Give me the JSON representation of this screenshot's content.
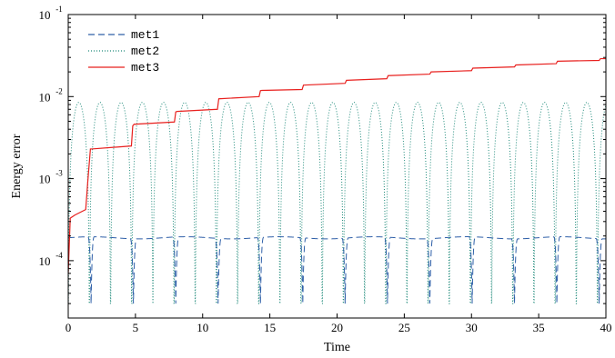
{
  "chart_data": {
    "type": "line",
    "xlabel": "Time",
    "ylabel": "Energy error",
    "xlim": [
      0,
      40
    ],
    "ylim": [
      2e-05,
      0.1
    ],
    "yscale": "log",
    "x_ticks": [
      "0",
      "5",
      "10",
      "15",
      "20",
      "25",
      "30",
      "35",
      "40"
    ],
    "y_ticks": [
      {
        "base": "10",
        "exp": "-4",
        "value": 0.0001
      },
      {
        "base": "10",
        "exp": "-3",
        "value": 0.001
      },
      {
        "base": "10",
        "exp": "-2",
        "value": 0.01
      },
      {
        "base": "10",
        "exp": "-1",
        "value": 0.1
      }
    ],
    "grid": false,
    "legend_position": "top-left",
    "colors": {
      "met1": "#2e5fa8",
      "met2": "#1f8a7a",
      "met3": "#e8201e"
    },
    "series": [
      {
        "name": "met1",
        "style": "dashed",
        "baseline": 0.00019,
        "dips_at": [
          1.7,
          4.85,
          8.0,
          11.15,
          14.3,
          17.45,
          20.6,
          23.75,
          26.9,
          30.05,
          33.2,
          36.35,
          39.5
        ],
        "dip_min": 3e-05,
        "dip_width": 0.25
      },
      {
        "name": "met2",
        "style": "dotted",
        "description_values": {
          "peak": 0.0085,
          "trough": 3e-05
        },
        "period": 1.575,
        "phase_zero": 0.0
      },
      {
        "name": "met3",
        "style": "solid",
        "x": [
          0,
          0.15,
          0.5,
          1.3,
          1.45,
          1.65,
          1.75,
          4.7,
          4.8,
          4.9,
          7.9,
          8.0,
          8.1,
          11.1,
          11.2,
          14.2,
          14.3,
          14.4,
          17.4,
          17.5,
          20.6,
          20.7,
          23.7,
          23.8,
          26.9,
          27.0,
          30.0,
          30.1,
          33.2,
          33.3,
          36.3,
          36.4,
          39.5,
          39.6,
          40
        ],
        "y": [
          7e-05,
          0.00033,
          0.00036,
          0.00042,
          0.0009,
          0.0023,
          0.0023,
          0.0025,
          0.0044,
          0.0046,
          0.0049,
          0.0065,
          0.0066,
          0.007,
          0.0094,
          0.01,
          0.0118,
          0.0119,
          0.0122,
          0.0138,
          0.0145,
          0.0158,
          0.0165,
          0.018,
          0.0188,
          0.02,
          0.0207,
          0.0222,
          0.023,
          0.0243,
          0.0252,
          0.027,
          0.0276,
          0.029,
          0.029
        ]
      }
    ]
  }
}
